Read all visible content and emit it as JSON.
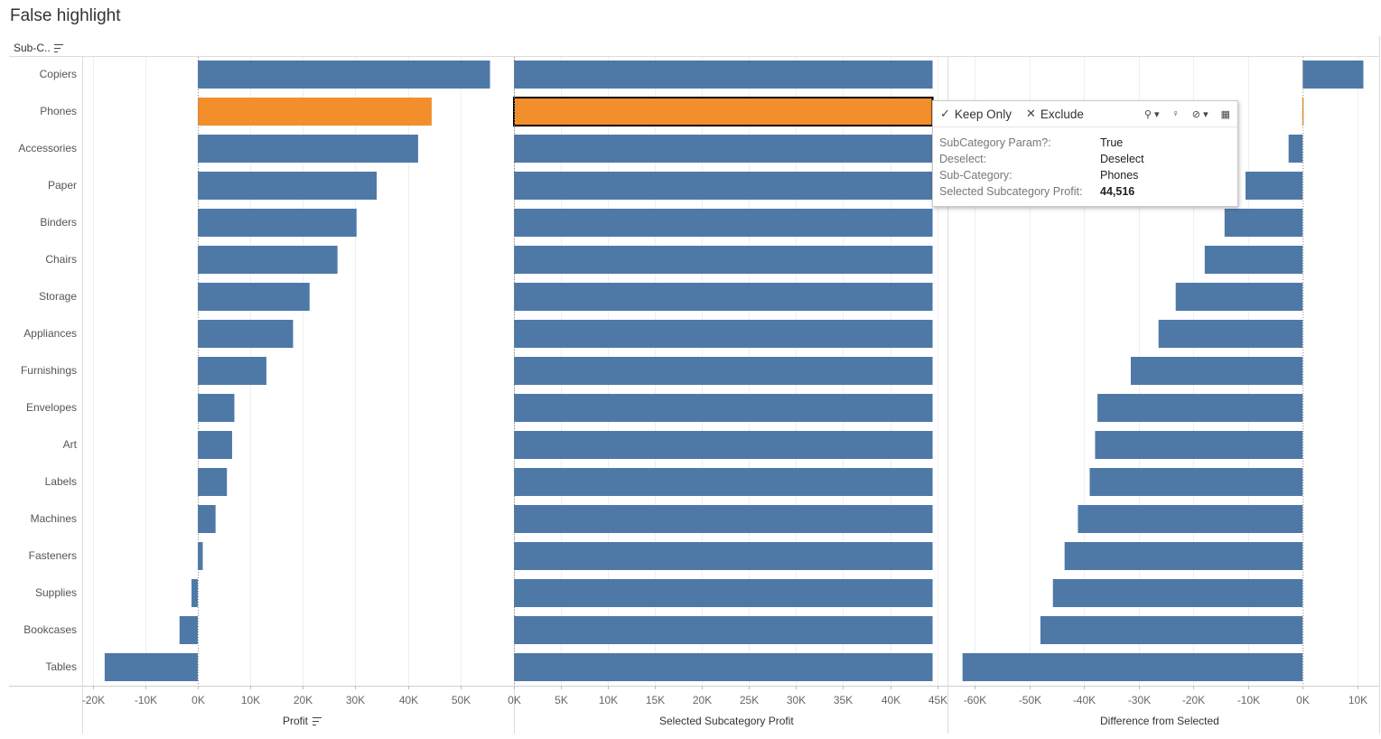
{
  "title": "False highlight",
  "row_header": "Sub-C..",
  "colors": {
    "bar": "#4e79a7",
    "highlight": "#f28e2b"
  },
  "selected_category": "Phones",
  "chart_data": [
    {
      "type": "bar",
      "xlabel": "Profit",
      "categories": [
        "Copiers",
        "Phones",
        "Accessories",
        "Paper",
        "Binders",
        "Chairs",
        "Storage",
        "Appliances",
        "Furnishings",
        "Envelopes",
        "Art",
        "Labels",
        "Machines",
        "Fasteners",
        "Supplies",
        "Bookcases",
        "Tables"
      ],
      "values": [
        55618,
        44516,
        41937,
        34054,
        30222,
        26590,
        21279,
        18138,
        13059,
        6964,
        6528,
        5546,
        3385,
        950,
        -1189,
        -3473,
        -17725
      ],
      "xlim": [
        -22000,
        60000
      ],
      "ticks": [
        -20000,
        -10000,
        0,
        10000,
        20000,
        30000,
        40000,
        50000
      ],
      "tick_labels": [
        "-20K",
        "-10K",
        "0K",
        "10K",
        "20K",
        "30K",
        "40K",
        "50K"
      ]
    },
    {
      "type": "bar",
      "xlabel": "Selected Subcategory Profit",
      "categories": [
        "Copiers",
        "Phones",
        "Accessories",
        "Paper",
        "Binders",
        "Chairs",
        "Storage",
        "Appliances",
        "Furnishings",
        "Envelopes",
        "Art",
        "Labels",
        "Machines",
        "Fasteners",
        "Supplies",
        "Bookcases",
        "Tables"
      ],
      "values": [
        44516,
        44516,
        44516,
        44516,
        44516,
        44516,
        44516,
        44516,
        44516,
        44516,
        44516,
        44516,
        44516,
        44516,
        44516,
        44516,
        44516
      ],
      "xlim": [
        0,
        46000
      ],
      "ticks": [
        0,
        5000,
        10000,
        15000,
        20000,
        25000,
        30000,
        35000,
        40000,
        45000
      ],
      "tick_labels": [
        "0K",
        "5K",
        "10K",
        "15K",
        "20K",
        "25K",
        "30K",
        "35K",
        "40K",
        "45K"
      ]
    },
    {
      "type": "bar",
      "xlabel": "Difference from Selected",
      "categories": [
        "Copiers",
        "Phones",
        "Accessories",
        "Paper",
        "Binders",
        "Chairs",
        "Storage",
        "Appliances",
        "Furnishings",
        "Envelopes",
        "Art",
        "Labels",
        "Machines",
        "Fasteners",
        "Supplies",
        "Bookcases",
        "Tables"
      ],
      "values": [
        11102,
        0,
        -2579,
        -10462,
        -14294,
        -17926,
        -23237,
        -26378,
        -31457,
        -37552,
        -37988,
        -38970,
        -41131,
        -43566,
        -45705,
        -47989,
        -62241
      ],
      "xlim": [
        -65000,
        14000
      ],
      "ticks": [
        -60000,
        -50000,
        -40000,
        -30000,
        -20000,
        -10000,
        0,
        10000
      ],
      "tick_labels": [
        "-60K",
        "-50K",
        "-40K",
        "-30K",
        "-20K",
        "-10K",
        "0K",
        "10K"
      ]
    }
  ],
  "tooltip": {
    "keep_only": "Keep Only",
    "exclude": "Exclude",
    "rows": [
      {
        "key": "SubCategory Param?:",
        "value": "True",
        "bold": false
      },
      {
        "key": "Deselect:",
        "value": "Deselect",
        "bold": false
      },
      {
        "key": "Sub-Category:",
        "value": "Phones",
        "bold": false
      },
      {
        "key": "Selected Subcategory Profit:",
        "value": "44,516",
        "bold": true
      }
    ]
  }
}
